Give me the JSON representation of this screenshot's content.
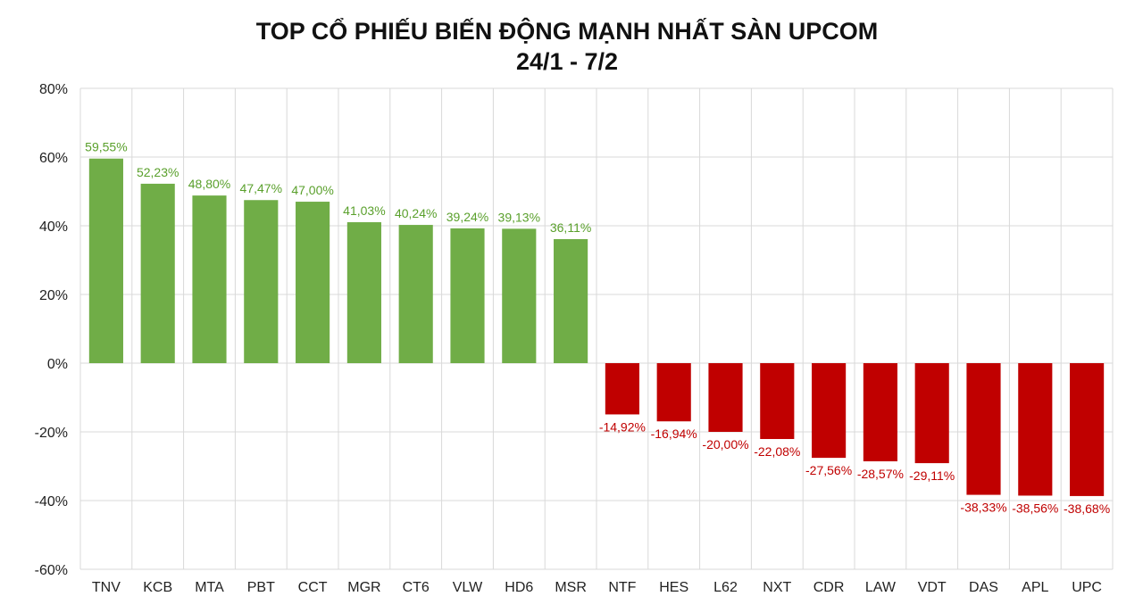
{
  "chart_data": {
    "type": "bar",
    "title": "TOP CỔ PHIẾU BIẾN ĐỘNG MẠNH NHẤT SÀN UPCOM",
    "subtitle": "24/1 - 7/2",
    "xlabel": "",
    "ylabel": "",
    "ylim": [
      -60,
      80
    ],
    "yticks": [
      80,
      60,
      40,
      20,
      0,
      -20,
      -40,
      -60
    ],
    "ytick_labels": [
      "80%",
      "60%",
      "40%",
      "20%",
      "0%",
      "-20%",
      "-40%",
      "-60%"
    ],
    "grid": true,
    "legend": "none",
    "categories": [
      "TNV",
      "KCB",
      "MTA",
      "PBT",
      "CCT",
      "MGR",
      "CT6",
      "VLW",
      "HD6",
      "MSR",
      "NTF",
      "HES",
      "L62",
      "NXT",
      "CDR",
      "LAW",
      "VDT",
      "DAS",
      "APL",
      "UPC"
    ],
    "values": [
      59.55,
      52.23,
      48.8,
      47.47,
      47.0,
      41.03,
      40.24,
      39.24,
      39.13,
      36.11,
      -14.92,
      -16.94,
      -20.0,
      -22.08,
      -27.56,
      -28.57,
      -29.11,
      -38.33,
      -38.56,
      -38.68
    ],
    "value_labels": [
      "59,55%",
      "52,23%",
      "48,80%",
      "47,47%",
      "47,00%",
      "41,03%",
      "40,24%",
      "39,24%",
      "39,13%",
      "36,11%",
      "-14,92%",
      "-16,94%",
      "-20,00%",
      "-22,08%",
      "-27,56%",
      "-28,57%",
      "-29,11%",
      "-38,33%",
      "-38,56%",
      "-38,68%"
    ],
    "colors": {
      "positive": "#70ad47",
      "negative": "#c00000",
      "positive_label": "#5aa02c",
      "negative_label": "#c00000",
      "grid": "#d9d9d9"
    }
  }
}
